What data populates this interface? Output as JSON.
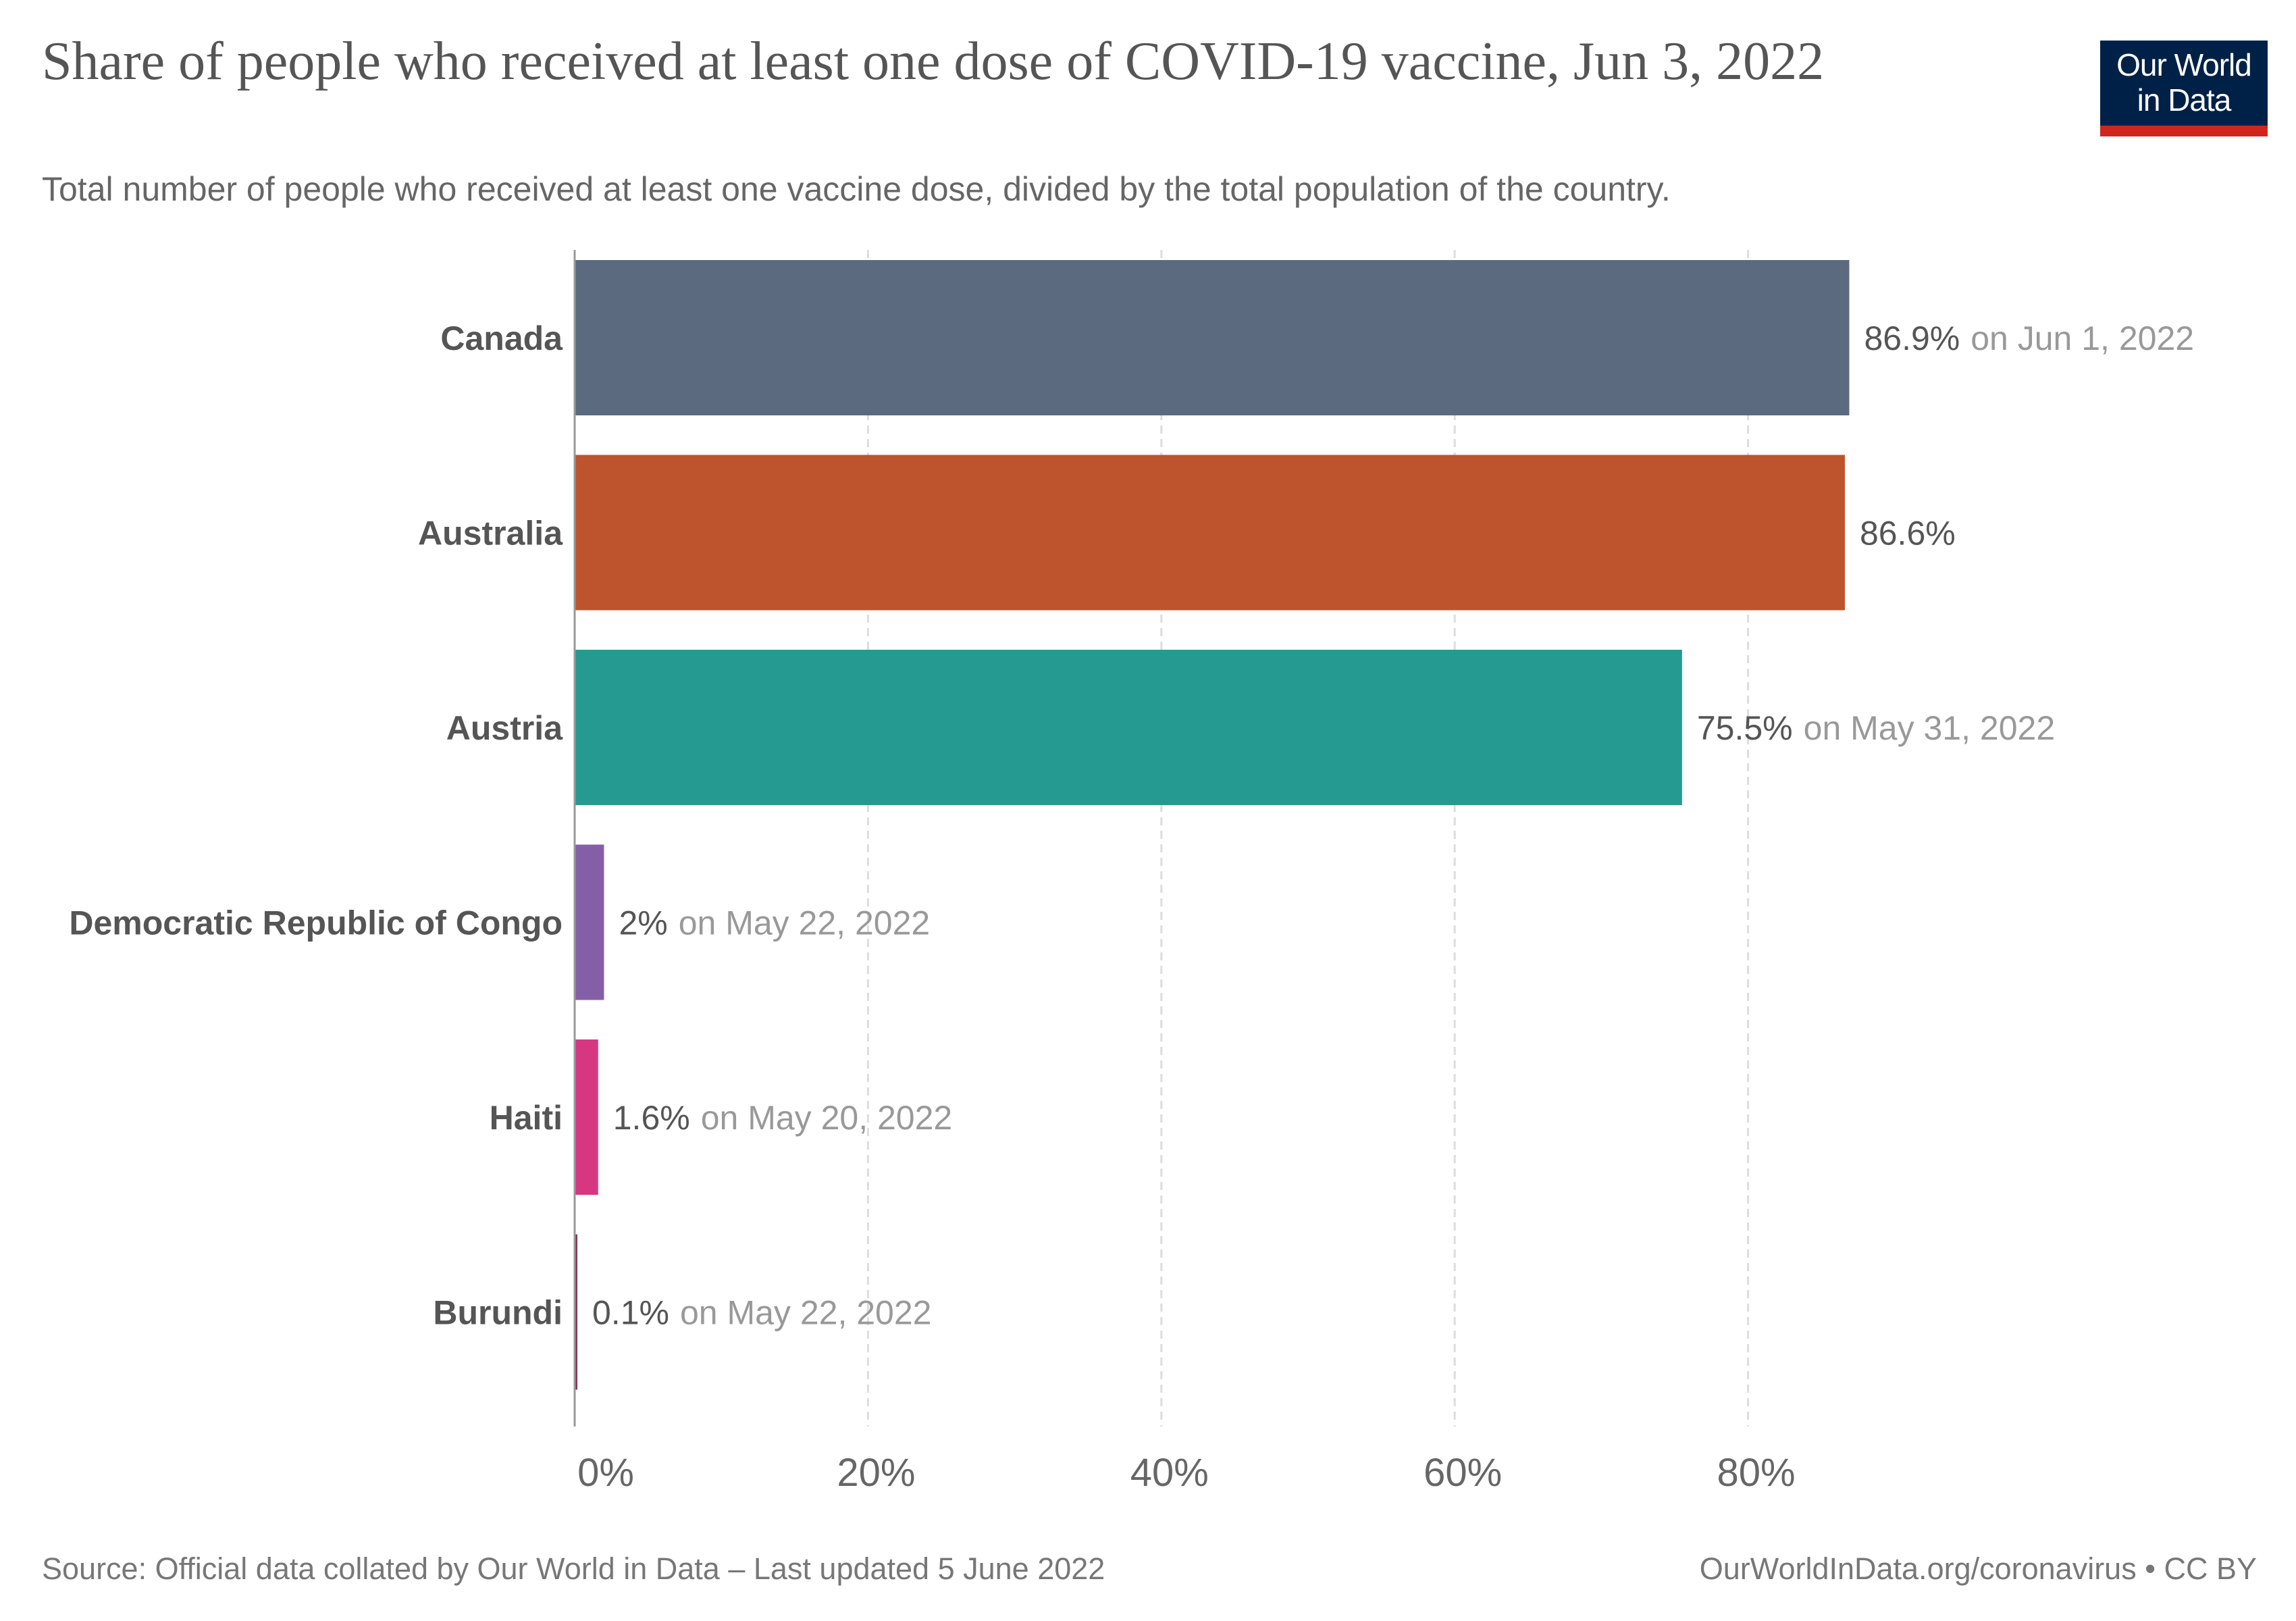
{
  "header": {
    "title": "Share of people who received at least one dose of COVID-19 vaccine, Jun 3, 2022",
    "subtitle": "Total number of people who received at least one vaccine dose, divided by the total population of the country."
  },
  "logo": {
    "line1": "Our World",
    "line2": "in Data",
    "background_color": "#002147",
    "accent_color": "#ce261e"
  },
  "footer": {
    "source": "Source: Official data collated by Our World in Data – Last updated 5 June 2022",
    "credit": "OurWorldInData.org/coronavirus • CC BY"
  },
  "chart_data": {
    "type": "bar",
    "orientation": "horizontal",
    "grid": true,
    "xlim": [
      0,
      100
    ],
    "x_ticks": [
      0,
      20,
      40,
      60,
      80
    ],
    "x_tick_labels": [
      "0%",
      "20%",
      "40%",
      "60%",
      "80%"
    ],
    "unit": "%",
    "categories": [
      "Canada",
      "Australia",
      "Austria",
      "Democratic Republic of Congo",
      "Haiti",
      "Burundi"
    ],
    "values": [
      86.9,
      86.6,
      75.5,
      2,
      1.6,
      0.1
    ],
    "value_labels": [
      "86.9%",
      "86.6%",
      "75.5%",
      "2%",
      "1.6%",
      "0.1%"
    ],
    "date_notes": [
      "on Jun 1, 2022",
      "",
      "on May 31, 2022",
      "on May 22, 2022",
      "on May 20, 2022",
      "on May 22, 2022"
    ],
    "colors": [
      "#5b6a7e",
      "#bd542d",
      "#259a91",
      "#845fa7",
      "#d63780",
      "#873650"
    ]
  }
}
